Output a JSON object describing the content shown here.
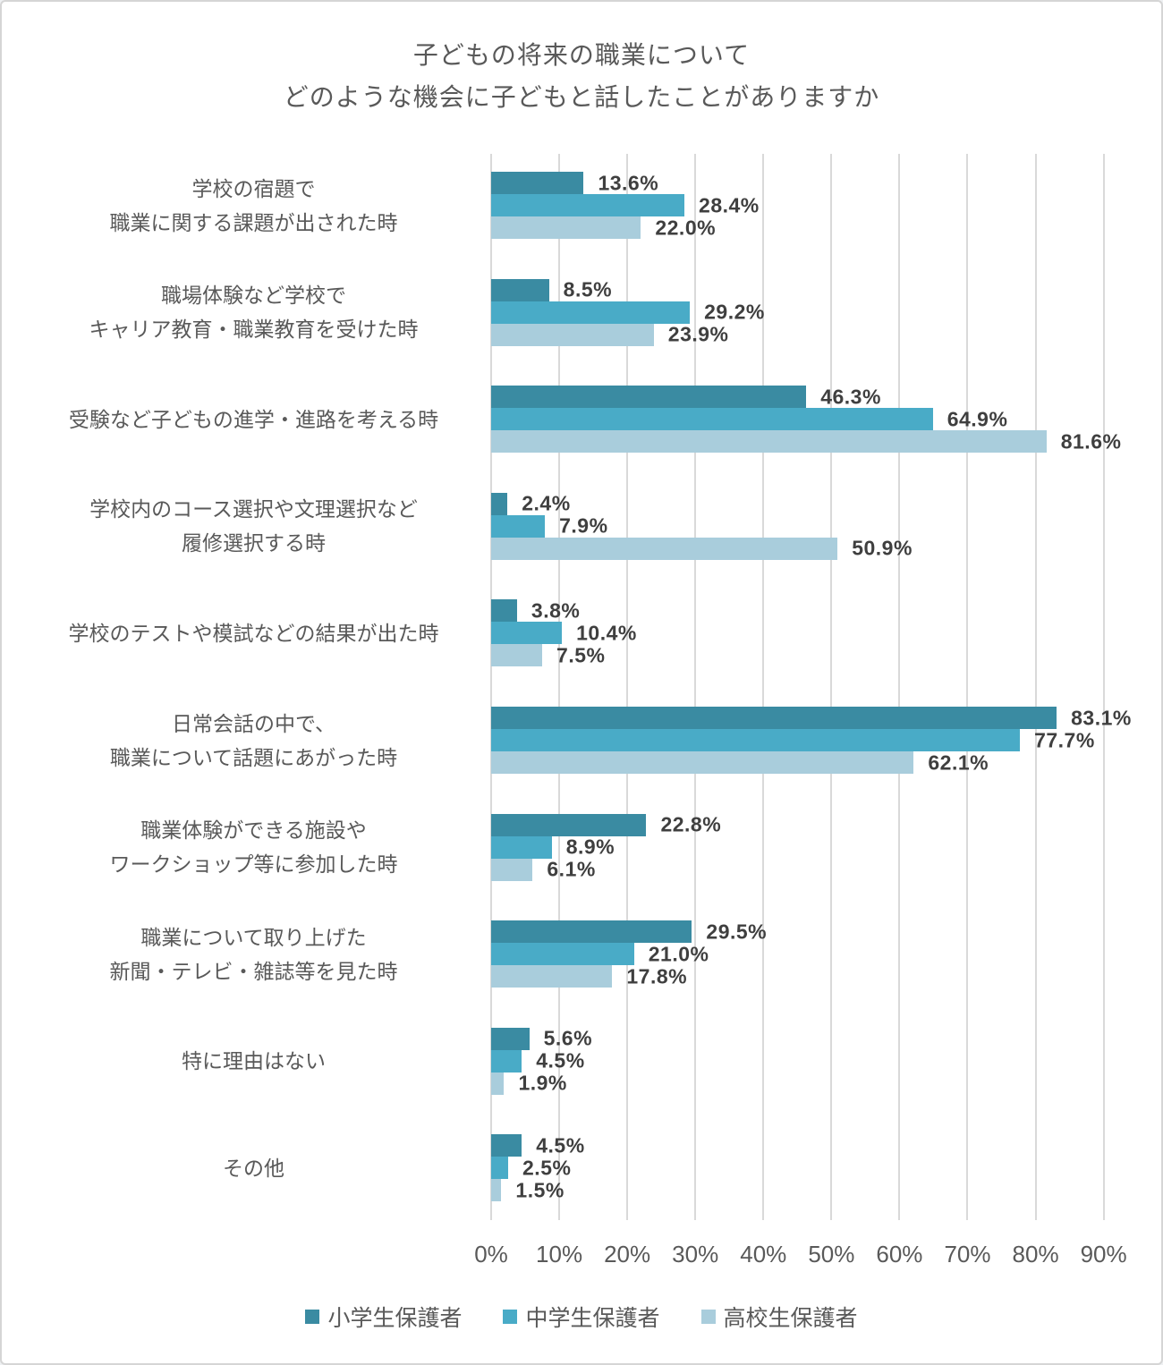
{
  "chart_data": {
    "type": "bar",
    "orientation": "horizontal",
    "title": "子どもの将来の職業について どのような機会に子どもと話したことがありますか",
    "title_lines": [
      "子どもの将来の職業について",
      "どのような機会に子どもと話したことがありますか"
    ],
    "categories": [
      [
        "学校の宿題で",
        "職業に関する課題が出された時"
      ],
      [
        "職場体験など学校で",
        "キャリア教育・職業教育を受けた時"
      ],
      [
        "受験など子どもの進学・進路を考える時"
      ],
      [
        "学校内のコース選択や文理選択など",
        "履修選択する時"
      ],
      [
        "学校のテストや模試などの結果が出た時"
      ],
      [
        "日常会話の中で、",
        "職業について話題にあがった時"
      ],
      [
        "職業体験ができる施設や",
        "ワークショップ等に参加した時"
      ],
      [
        "職業について取り上げた",
        "新聞・テレビ・雑誌等を見た時"
      ],
      [
        "特に理由はない"
      ],
      [
        "その他"
      ]
    ],
    "series": [
      {
        "name": "小学生保護者",
        "color": "#3a8ba2",
        "values": [
          13.6,
          8.5,
          46.3,
          2.4,
          3.8,
          83.1,
          22.8,
          29.5,
          5.6,
          4.5
        ],
        "labels": [
          "13.6%",
          "8.5%",
          "46.3%",
          "2.4%",
          "3.8%",
          "83.1%",
          "22.8%",
          "29.5%",
          "5.6%",
          "4.5%"
        ]
      },
      {
        "name": "中学生保護者",
        "color": "#49abc7",
        "values": [
          28.4,
          29.2,
          64.9,
          7.9,
          10.4,
          77.7,
          8.9,
          21.0,
          4.5,
          2.5
        ],
        "labels": [
          "28.4%",
          "29.2%",
          "64.9%",
          "7.9%",
          "10.4%",
          "77.7%",
          "8.9%",
          "21.0%",
          "4.5%",
          "2.5%"
        ]
      },
      {
        "name": "高校生保護者",
        "color": "#a9cddc",
        "values": [
          22.0,
          23.9,
          81.6,
          50.9,
          7.5,
          62.1,
          6.1,
          17.8,
          1.9,
          1.5
        ],
        "labels": [
          "22.0%",
          "23.9%",
          "81.6%",
          "50.9%",
          "7.5%",
          "62.1%",
          "6.1%",
          "17.8%",
          "1.9%",
          "1.5%"
        ]
      }
    ],
    "x_ticks": [
      "0%",
      "10%",
      "20%",
      "30%",
      "40%",
      "50%",
      "60%",
      "70%",
      "80%",
      "90%"
    ],
    "xlim": [
      0,
      90
    ],
    "grid": true,
    "legend_position": "bottom",
    "colors": {
      "grid": "#d9d9d9",
      "title_text": "#595959",
      "axis_text": "#595959",
      "category_text": "#595959",
      "value_label_text": "#3f3f3f",
      "background": "#ffffff",
      "frame_border": "#d5d5d5"
    }
  }
}
